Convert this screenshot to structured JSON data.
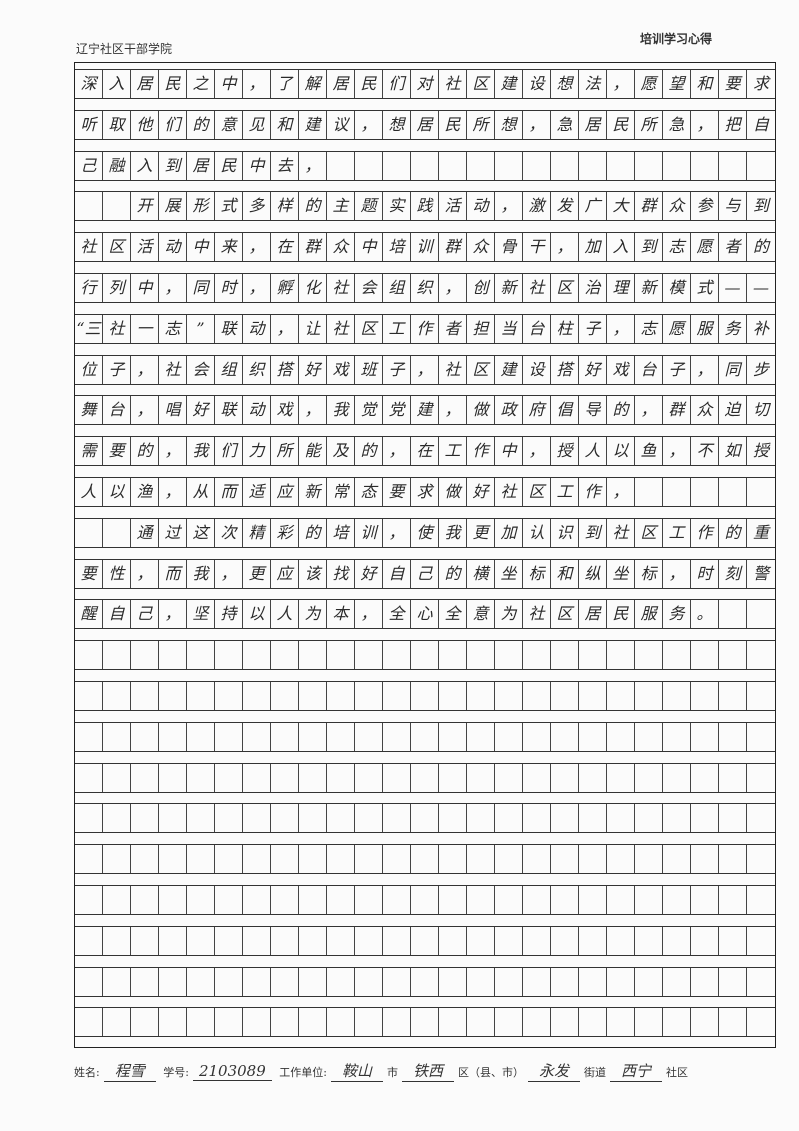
{
  "header": {
    "institution": "辽宁社区干部学院",
    "doc_type": "培训学习心得"
  },
  "rows": [
    "深入居民之中，了解居民们对社区建设想法，愿望和要求",
    "听取他们的意见和建议，想居民所想，急居民所急，把自",
    "己融入到居民中去，",
    "  开展形式多样的主题实践活动，激发广大群众参与到",
    "社区活动中来，在群众中培训群众骨干，加入到志愿者的",
    "行列中，同时，孵化社会组织，创新社区治理新模式——",
    [
      "“三",
      "社",
      "一",
      "志",
      "”",
      "联",
      "动",
      "，",
      "让",
      "社",
      "区",
      "工",
      "作",
      "者",
      "担",
      "当",
      "台",
      "柱",
      "子",
      "，",
      "志",
      "愿",
      "服",
      "务",
      "补"
    ],
    "位子，社会组织搭好戏班子，社区建设搭好戏台子，同步",
    "舞台，唱好联动戏，我觉党建，做政府倡导的，群众迫切",
    "需要的，我们力所能及的，在工作中，授人以鱼，不如授",
    "人以渔，从而适应新常态要求做好社区工作，",
    "  通过这次精彩的培训，使我更加认识到社区工作的重",
    "要性，而我，更应该找好自己的横坐标和纵坐标，时刻警",
    "醒自己，坚持以人为本，全心全意为社区居民服务。",
    "",
    "",
    "",
    "",
    "",
    "",
    "",
    "",
    "",
    ""
  ],
  "footer": {
    "name_label": "姓名:",
    "name": "程雪",
    "id_label": "学号:",
    "id": "2103089",
    "unit_label": "工作单位:",
    "city": "鞍山",
    "city_label": "市",
    "district": "铁西",
    "district_label": "区（县、市）",
    "street": "永发",
    "street_label": "街道",
    "community": "西宁",
    "community_label": "社区"
  }
}
